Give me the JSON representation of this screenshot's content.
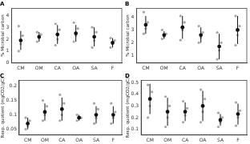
{
  "chart_data": [
    {
      "type": "scatter",
      "title": "A",
      "y_label": "% Microbial carbon",
      "categories": [
        "CM",
        "OM",
        "CA",
        "OA",
        "SA",
        "F"
      ],
      "values": [
        1.9,
        2.2,
        2.4,
        2.5,
        2.2,
        1.7
      ],
      "error": [
        0.8,
        0.4,
        0.8,
        0.7,
        0.8,
        0.4
      ],
      "points": [
        [
          1.0,
          1.6,
          2.3,
          3.1
        ],
        [
          1.8,
          2.1,
          2.4,
          2.6
        ],
        [
          1.5,
          2.0,
          2.8,
          3.3
        ],
        [
          1.8,
          2.3,
          2.9,
          3.4
        ],
        [
          1.3,
          1.9,
          2.6,
          3.0
        ],
        [
          1.3,
          1.6,
          1.9,
          2.1
        ]
      ],
      "color": "#111111",
      "ylim": [
        0,
        4.6
      ],
      "yticks": [
        0,
        1,
        2,
        3,
        4
      ],
      "grid": false
    },
    {
      "type": "scatter",
      "title": "B",
      "y_label": "% Microbial carbon",
      "categories": [
        "CM",
        "OM",
        "CA",
        "OA",
        "SA",
        "F"
      ],
      "values": [
        3.4,
        2.6,
        3.2,
        2.6,
        1.7,
        3.0
      ],
      "error": [
        0.7,
        0.3,
        0.9,
        0.6,
        1.0,
        1.1
      ],
      "points": [
        [
          2.7,
          3.1,
          3.6,
          4.4
        ],
        [
          2.3,
          2.5,
          2.7,
          3.0
        ],
        [
          2.2,
          3.0,
          3.6,
          4.1
        ],
        [
          2.0,
          2.4,
          2.8,
          3.3
        ],
        [
          0.7,
          1.4,
          2.0,
          2.8
        ],
        [
          1.8,
          2.6,
          3.3,
          4.1
        ]
      ],
      "color": "#111111",
      "ylim": [
        0.4,
        4.7
      ],
      "yticks": [
        1,
        2,
        3,
        4
      ],
      "grid": false
    },
    {
      "type": "scatter",
      "title": "C",
      "y_label": "Resp. quotient (mgCO2/gC)",
      "categories": [
        "CM",
        "OM",
        "CA",
        "OA",
        "SA",
        "F"
      ],
      "values": [
        0.07,
        0.11,
        0.12,
        0.09,
        0.1,
        0.1
      ],
      "error": [
        0.02,
        0.03,
        0.04,
        0.01,
        0.03,
        0.03
      ],
      "points": [
        [
          0.05,
          0.06,
          0.08,
          0.09
        ],
        [
          0.08,
          0.1,
          0.13,
          0.15
        ],
        [
          0.08,
          0.1,
          0.14,
          0.17
        ],
        [
          0.08,
          0.09,
          0.09,
          0.1
        ],
        [
          0.07,
          0.09,
          0.12,
          0.14
        ],
        [
          0.07,
          0.09,
          0.11,
          0.14
        ]
      ],
      "color": "#111111",
      "ylim": [
        0.03,
        0.22
      ],
      "yticks": [
        0.05,
        0.1,
        0.15,
        0.2
      ],
      "grid": false
    },
    {
      "type": "scatter",
      "title": "D",
      "y_label": "Resp. quotient (mgCO2/gC)",
      "categories": [
        "CM",
        "OM",
        "CA",
        "OA",
        "SA",
        "F"
      ],
      "values": [
        0.36,
        0.25,
        0.25,
        0.3,
        0.18,
        0.23
      ],
      "error": [
        0.13,
        0.12,
        0.08,
        0.13,
        0.05,
        0.09
      ],
      "points": [
        [
          0.2,
          0.3,
          0.42,
          0.48
        ],
        [
          0.12,
          0.2,
          0.3,
          0.38
        ],
        [
          0.16,
          0.22,
          0.28,
          0.34
        ],
        [
          0.16,
          0.25,
          0.36,
          0.44
        ],
        [
          0.12,
          0.16,
          0.2,
          0.24
        ],
        [
          0.13,
          0.2,
          0.26,
          0.33
        ]
      ],
      "color": "#111111",
      "ylim": [
        0.05,
        0.52
      ],
      "yticks": [
        0.1,
        0.2,
        0.3,
        0.4,
        0.5
      ],
      "grid": false
    }
  ]
}
